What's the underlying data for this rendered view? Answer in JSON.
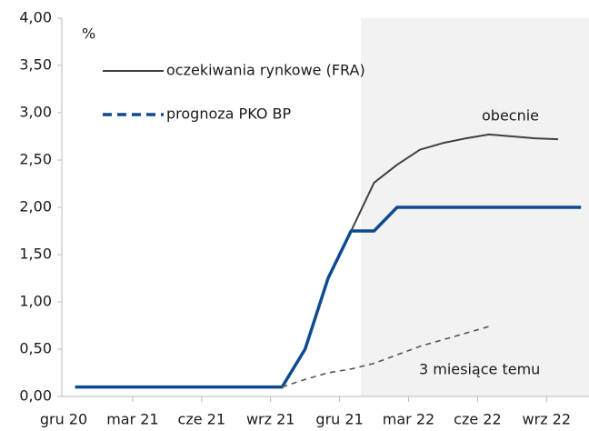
{
  "chart_data": {
    "type": "line",
    "y_unit": "%",
    "annotations": [
      "obecnie"
    ],
    "categories": [
      "gru 20",
      null,
      null,
      "mar 21",
      null,
      null,
      "cze 21",
      null,
      null,
      "wrz 21",
      null,
      null,
      "gru 21",
      null,
      null,
      "mar 22",
      null,
      null,
      "cze 22",
      null,
      null,
      "wrz 22",
      null
    ],
    "series": [
      {
        "name": "oczekiwania rynkowe (FRA)",
        "color": "#404040",
        "width": 2,
        "values": [
          0.1,
          0.1,
          0.1,
          0.1,
          0.1,
          0.1,
          0.1,
          0.1,
          0.1,
          0.1,
          0.5,
          1.25,
          1.75,
          2.26,
          2.45,
          2.61,
          2.68,
          2.73,
          2.77,
          2.75,
          2.73,
          2.72,
          null
        ]
      },
      {
        "name": "prognoza PKO BP",
        "color": "#0e4a8f",
        "width": 3.5,
        "dash": "10 6",
        "values": [
          0.1,
          0.1,
          0.1,
          0.1,
          0.1,
          0.1,
          0.1,
          0.1,
          0.1,
          0.1,
          0.5,
          1.25,
          1.75,
          1.75,
          2.0,
          2.0,
          2.0,
          2.0,
          2.0,
          2.0,
          2.0,
          2.0,
          2.0
        ]
      },
      {
        "name": "3 miesiące temu",
        "color": "#555555",
        "width": 1.6,
        "dash": "6 5",
        "values": [
          null,
          null,
          null,
          null,
          null,
          null,
          null,
          null,
          null,
          0.1,
          0.18,
          0.25,
          0.29,
          0.35,
          0.44,
          0.53,
          0.6,
          0.67,
          0.74,
          null,
          null,
          null,
          null
        ]
      }
    ],
    "ylim": [
      0,
      4
    ],
    "yticks": [
      {
        "value": 0,
        "label": "0,00"
      },
      {
        "value": 0.5,
        "label": "0,50"
      },
      {
        "value": 1,
        "label": "1,00"
      },
      {
        "value": 1.5,
        "label": "1,50"
      },
      {
        "value": 2,
        "label": "2,00"
      },
      {
        "value": 2.5,
        "label": "2,50"
      },
      {
        "value": 3,
        "label": "3,00"
      },
      {
        "value": 3.5,
        "label": "3,50"
      },
      {
        "value": 4,
        "label": "4,00"
      }
    ]
  }
}
